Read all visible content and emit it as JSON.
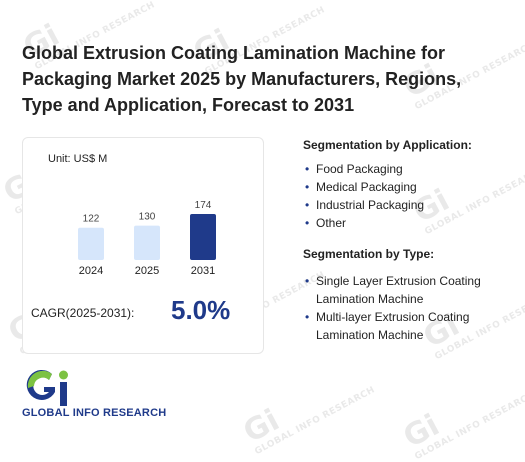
{
  "title": "Global Extrusion Coating Lamination Machine for Packaging Market 2025 by Manufacturers, Regions, Type and Application, Forecast to 2031",
  "chart_data": {
    "type": "bar",
    "unit_label": "Unit: US$ M",
    "categories": [
      "2024",
      "2025",
      "2031"
    ],
    "values": [
      122,
      130,
      174
    ],
    "bar_colors": [
      "#d6e6fb",
      "#d6e6fb",
      "#1f3a8a"
    ],
    "ylim": [
      0,
      174
    ]
  },
  "cagr": {
    "label": "CAGR(2025-2031):",
    "value": "5.0%"
  },
  "segmentation_application": {
    "heading": "Segmentation by Application:",
    "items": [
      "Food Packaging",
      "Medical Packaging",
      "Industrial Packaging",
      "Other"
    ]
  },
  "segmentation_type": {
    "heading": "Segmentation by Type:",
    "items": [
      "Single Layer Extrusion Coating Lamination Machine",
      "Multi-layer Extrusion Coating Lamination Machine"
    ]
  },
  "logo": {
    "text": "GLOBAL INFO RESEARCH",
    "mark_icon": "gi-logo-icon"
  },
  "watermark": {
    "mark": "Gi",
    "text": "GLOBAL INFO RESEARCH"
  },
  "colors": {
    "accent": "#1f3a8a",
    "light_bar": "#d6e6fb",
    "logo_green": "#7cc242"
  }
}
